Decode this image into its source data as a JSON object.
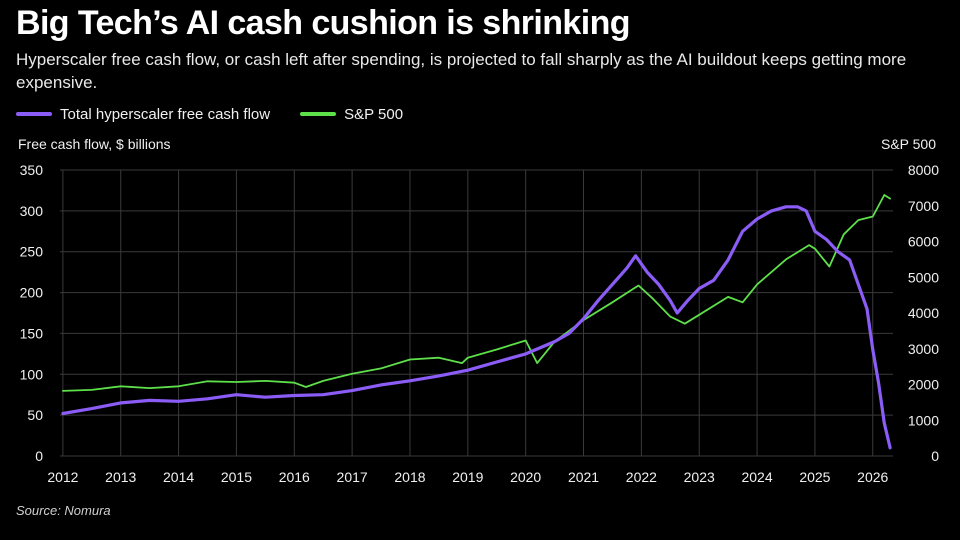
{
  "title": "Big Tech’s AI cash cushion is shrinking",
  "subtitle": "Hyperscaler free cash flow, or cash left after spending, is projected to fall sharply as the AI buildout keeps getting more expensive.",
  "source": "Source: Nomura",
  "colors": {
    "background": "#000000",
    "grid": "#3a3a3a",
    "fcf_series": "#8b5cf6",
    "sp500_series": "#5ee04a"
  },
  "chart_data": {
    "type": "line",
    "x_axis": {
      "ticks": [
        "2012",
        "2013",
        "2014",
        "2015",
        "2016",
        "2017",
        "2018",
        "2019",
        "2020",
        "2021",
        "2022",
        "2023",
        "2024",
        "2025",
        "2026"
      ],
      "range": [
        2011.95,
        2026.35
      ]
    },
    "y_left": {
      "label": "Free cash flow, $ billions",
      "range": [
        0,
        350
      ],
      "ticks": [
        "0",
        "50",
        "100",
        "150",
        "200",
        "250",
        "300",
        "350"
      ]
    },
    "y_right": {
      "label": "S&P 500",
      "range": [
        0,
        8000
      ],
      "ticks": [
        "0",
        "1000",
        "2000",
        "3000",
        "4000",
        "5000",
        "6000",
        "7000",
        "8000"
      ]
    },
    "grid": true,
    "legend_position": "top-left",
    "series": [
      {
        "name": "Total hyperscaler free cash flow",
        "axis": "left",
        "color": "#8b5cf6",
        "x": [
          2012.0,
          2012.5,
          2013.0,
          2013.5,
          2014.0,
          2014.5,
          2015.0,
          2015.5,
          2016.0,
          2016.5,
          2017.0,
          2017.5,
          2018.0,
          2018.5,
          2019.0,
          2019.5,
          2020.0,
          2020.5,
          2020.75,
          2021.0,
          2021.25,
          2021.5,
          2021.75,
          2021.9,
          2022.1,
          2022.3,
          2022.5,
          2022.62,
          2022.8,
          2023.0,
          2023.25,
          2023.5,
          2023.75,
          2024.0,
          2024.25,
          2024.5,
          2024.7,
          2024.85,
          2025.0,
          2025.2,
          2025.4,
          2025.6,
          2025.75,
          2025.9,
          2026.0,
          2026.1,
          2026.2,
          2026.3
        ],
        "values": [
          52,
          58,
          65,
          68,
          67,
          70,
          75,
          72,
          74,
          75,
          80,
          87,
          92,
          98,
          105,
          115,
          125,
          140,
          150,
          168,
          190,
          210,
          230,
          245,
          225,
          210,
          190,
          175,
          190,
          205,
          215,
          240,
          275,
          290,
          300,
          305,
          305,
          300,
          275,
          265,
          250,
          240,
          210,
          180,
          130,
          90,
          40,
          10
        ]
      },
      {
        "name": "S&P 500",
        "axis": "right",
        "color": "#5ee04a",
        "x": [
          2012.0,
          2012.5,
          2013.0,
          2013.5,
          2014.0,
          2014.5,
          2015.0,
          2015.5,
          2016.0,
          2016.2,
          2016.5,
          2017.0,
          2017.5,
          2018.0,
          2018.5,
          2018.9,
          2019.0,
          2019.5,
          2020.0,
          2020.2,
          2020.5,
          2020.75,
          2021.0,
          2021.5,
          2021.95,
          2022.2,
          2022.5,
          2022.75,
          2023.0,
          2023.5,
          2023.75,
          2024.0,
          2024.5,
          2024.9,
          2025.0,
          2025.25,
          2025.5,
          2025.75,
          2026.0,
          2026.2,
          2026.3
        ],
        "values": [
          1820,
          1850,
          1950,
          1900,
          1950,
          2090,
          2070,
          2100,
          2050,
          1930,
          2100,
          2300,
          2450,
          2700,
          2750,
          2600,
          2750,
          2980,
          3230,
          2600,
          3200,
          3500,
          3800,
          4300,
          4770,
          4400,
          3900,
          3700,
          3950,
          4450,
          4300,
          4800,
          5500,
          5900,
          5800,
          5300,
          6200,
          6600,
          6700,
          7300,
          7200
        ]
      }
    ]
  }
}
